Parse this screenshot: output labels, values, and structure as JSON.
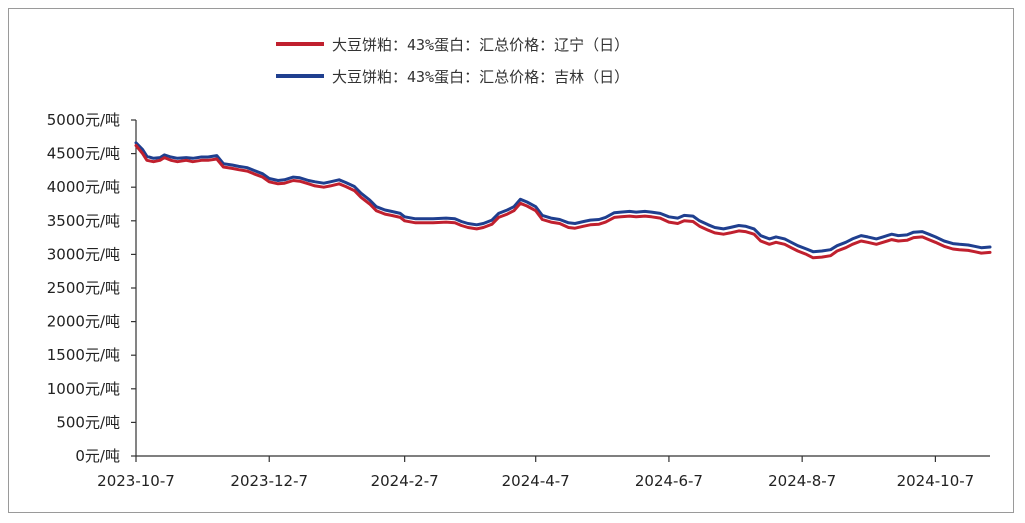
{
  "chart_data": {
    "type": "line",
    "title": "",
    "xlabel": "",
    "ylabel": "",
    "ylim": [
      0,
      5000
    ],
    "yticks": [
      0,
      500,
      1000,
      1500,
      2000,
      2500,
      3000,
      3500,
      4000,
      4500,
      5000
    ],
    "ytick_labels": [
      "0元/吨",
      "500元/吨",
      "1000元/吨",
      "1500元/吨",
      "2000元/吨",
      "2500元/吨",
      "3000元/吨",
      "3500元/吨",
      "4000元/吨",
      "4500元/吨",
      "5000元/吨"
    ],
    "xlim": [
      "2023-10-07",
      "2024-11-01"
    ],
    "xticks": [
      "2023-10-07",
      "2023-12-07",
      "2024-02-07",
      "2024-04-07",
      "2024-06-07",
      "2024-08-07",
      "2024-10-07"
    ],
    "xtick_labels": [
      "2023-10-7",
      "2023-12-7",
      "2024-2-7",
      "2024-4-7",
      "2024-6-7",
      "2024-8-7",
      "2024-10-7"
    ],
    "legend_position": "top",
    "grid": false,
    "series": [
      {
        "name": "大豆饼粕：43%蛋白：汇总价格：辽宁（日）",
        "color": "#c0202e",
        "points": [
          [
            "2023-10-07",
            4620
          ],
          [
            "2023-10-10",
            4500
          ],
          [
            "2023-10-12",
            4400
          ],
          [
            "2023-10-15",
            4380
          ],
          [
            "2023-10-18",
            4400
          ],
          [
            "2023-10-20",
            4440
          ],
          [
            "2023-10-23",
            4400
          ],
          [
            "2023-10-26",
            4380
          ],
          [
            "2023-10-30",
            4400
          ],
          [
            "2023-11-02",
            4380
          ],
          [
            "2023-11-06",
            4400
          ],
          [
            "2023-11-09",
            4400
          ],
          [
            "2023-11-13",
            4420
          ],
          [
            "2023-11-16",
            4300
          ],
          [
            "2023-11-20",
            4280
          ],
          [
            "2023-11-23",
            4260
          ],
          [
            "2023-11-27",
            4240
          ],
          [
            "2023-11-30",
            4200
          ],
          [
            "2023-12-04",
            4150
          ],
          [
            "2023-12-07",
            4080
          ],
          [
            "2023-12-11",
            4050
          ],
          [
            "2023-12-14",
            4060
          ],
          [
            "2023-12-18",
            4100
          ],
          [
            "2023-12-21",
            4090
          ],
          [
            "2023-12-25",
            4050
          ],
          [
            "2023-12-28",
            4020
          ],
          [
            "2024-01-01",
            4000
          ],
          [
            "2024-01-04",
            4020
          ],
          [
            "2024-01-08",
            4050
          ],
          [
            "2024-01-11",
            4010
          ],
          [
            "2024-01-15",
            3950
          ],
          [
            "2024-01-18",
            3850
          ],
          [
            "2024-01-22",
            3750
          ],
          [
            "2024-01-25",
            3650
          ],
          [
            "2024-01-29",
            3600
          ],
          [
            "2024-02-01",
            3580
          ],
          [
            "2024-02-05",
            3550
          ],
          [
            "2024-02-07",
            3500
          ],
          [
            "2024-02-12",
            3470
          ],
          [
            "2024-02-20",
            3470
          ],
          [
            "2024-02-26",
            3480
          ],
          [
            "2024-03-01",
            3470
          ],
          [
            "2024-03-04",
            3430
          ],
          [
            "2024-03-07",
            3400
          ],
          [
            "2024-03-11",
            3380
          ],
          [
            "2024-03-14",
            3400
          ],
          [
            "2024-03-18",
            3450
          ],
          [
            "2024-03-21",
            3550
          ],
          [
            "2024-03-25",
            3600
          ],
          [
            "2024-03-28",
            3650
          ],
          [
            "2024-03-31",
            3760
          ],
          [
            "2024-04-03",
            3720
          ],
          [
            "2024-04-07",
            3650
          ],
          [
            "2024-04-10",
            3520
          ],
          [
            "2024-04-14",
            3480
          ],
          [
            "2024-04-18",
            3460
          ],
          [
            "2024-04-22",
            3400
          ],
          [
            "2024-04-25",
            3390
          ],
          [
            "2024-04-29",
            3420
          ],
          [
            "2024-05-02",
            3440
          ],
          [
            "2024-05-06",
            3450
          ],
          [
            "2024-05-09",
            3480
          ],
          [
            "2024-05-13",
            3550
          ],
          [
            "2024-05-16",
            3560
          ],
          [
            "2024-05-20",
            3570
          ],
          [
            "2024-05-23",
            3560
          ],
          [
            "2024-05-27",
            3570
          ],
          [
            "2024-05-30",
            3560
          ],
          [
            "2024-06-03",
            3540
          ],
          [
            "2024-06-07",
            3480
          ],
          [
            "2024-06-11",
            3460
          ],
          [
            "2024-06-14",
            3500
          ],
          [
            "2024-06-18",
            3490
          ],
          [
            "2024-06-21",
            3420
          ],
          [
            "2024-06-25",
            3360
          ],
          [
            "2024-06-28",
            3320
          ],
          [
            "2024-07-02",
            3300
          ],
          [
            "2024-07-05",
            3320
          ],
          [
            "2024-07-09",
            3350
          ],
          [
            "2024-07-12",
            3340
          ],
          [
            "2024-07-16",
            3300
          ],
          [
            "2024-07-19",
            3200
          ],
          [
            "2024-07-23",
            3150
          ],
          [
            "2024-07-26",
            3180
          ],
          [
            "2024-07-30",
            3150
          ],
          [
            "2024-08-02",
            3100
          ],
          [
            "2024-08-05",
            3050
          ],
          [
            "2024-08-09",
            3000
          ],
          [
            "2024-08-12",
            2950
          ],
          [
            "2024-08-16",
            2960
          ],
          [
            "2024-08-20",
            2980
          ],
          [
            "2024-08-23",
            3050
          ],
          [
            "2024-08-27",
            3100
          ],
          [
            "2024-08-30",
            3150
          ],
          [
            "2024-09-03",
            3200
          ],
          [
            "2024-09-06",
            3180
          ],
          [
            "2024-09-10",
            3150
          ],
          [
            "2024-09-13",
            3180
          ],
          [
            "2024-09-17",
            3220
          ],
          [
            "2024-09-20",
            3200
          ],
          [
            "2024-09-24",
            3210
          ],
          [
            "2024-09-27",
            3250
          ],
          [
            "2024-10-01",
            3260
          ],
          [
            "2024-10-04",
            3220
          ],
          [
            "2024-10-07",
            3180
          ],
          [
            "2024-10-11",
            3120
          ],
          [
            "2024-10-15",
            3080
          ],
          [
            "2024-10-18",
            3070
          ],
          [
            "2024-10-22",
            3060
          ],
          [
            "2024-10-25",
            3040
          ],
          [
            "2024-10-28",
            3020
          ],
          [
            "2024-11-01",
            3030
          ]
        ]
      },
      {
        "name": "大豆饼粕：43%蛋白：汇总价格：吉林（日）",
        "color": "#1f3f8f",
        "points": [
          [
            "2023-10-07",
            4660
          ],
          [
            "2023-10-10",
            4560
          ],
          [
            "2023-10-12",
            4460
          ],
          [
            "2023-10-15",
            4430
          ],
          [
            "2023-10-18",
            4440
          ],
          [
            "2023-10-20",
            4480
          ],
          [
            "2023-10-23",
            4450
          ],
          [
            "2023-10-26",
            4430
          ],
          [
            "2023-10-30",
            4440
          ],
          [
            "2023-11-02",
            4430
          ],
          [
            "2023-11-06",
            4450
          ],
          [
            "2023-11-09",
            4450
          ],
          [
            "2023-11-13",
            4470
          ],
          [
            "2023-11-16",
            4350
          ],
          [
            "2023-11-20",
            4330
          ],
          [
            "2023-11-23",
            4310
          ],
          [
            "2023-11-27",
            4290
          ],
          [
            "2023-11-30",
            4250
          ],
          [
            "2023-12-04",
            4200
          ],
          [
            "2023-12-07",
            4130
          ],
          [
            "2023-12-11",
            4100
          ],
          [
            "2023-12-14",
            4110
          ],
          [
            "2023-12-18",
            4150
          ],
          [
            "2023-12-21",
            4140
          ],
          [
            "2023-12-25",
            4100
          ],
          [
            "2023-12-28",
            4080
          ],
          [
            "2024-01-01",
            4060
          ],
          [
            "2024-01-04",
            4080
          ],
          [
            "2024-01-08",
            4110
          ],
          [
            "2024-01-11",
            4070
          ],
          [
            "2024-01-15",
            4010
          ],
          [
            "2024-01-18",
            3910
          ],
          [
            "2024-01-22",
            3810
          ],
          [
            "2024-01-25",
            3710
          ],
          [
            "2024-01-29",
            3660
          ],
          [
            "2024-02-01",
            3640
          ],
          [
            "2024-02-05",
            3610
          ],
          [
            "2024-02-07",
            3560
          ],
          [
            "2024-02-12",
            3530
          ],
          [
            "2024-02-20",
            3530
          ],
          [
            "2024-02-26",
            3540
          ],
          [
            "2024-03-01",
            3530
          ],
          [
            "2024-03-04",
            3490
          ],
          [
            "2024-03-07",
            3460
          ],
          [
            "2024-03-11",
            3440
          ],
          [
            "2024-03-14",
            3460
          ],
          [
            "2024-03-18",
            3510
          ],
          [
            "2024-03-21",
            3610
          ],
          [
            "2024-03-25",
            3660
          ],
          [
            "2024-03-28",
            3710
          ],
          [
            "2024-03-31",
            3820
          ],
          [
            "2024-04-03",
            3780
          ],
          [
            "2024-04-07",
            3710
          ],
          [
            "2024-04-10",
            3580
          ],
          [
            "2024-04-14",
            3540
          ],
          [
            "2024-04-18",
            3520
          ],
          [
            "2024-04-22",
            3470
          ],
          [
            "2024-04-25",
            3460
          ],
          [
            "2024-04-29",
            3490
          ],
          [
            "2024-05-02",
            3510
          ],
          [
            "2024-05-06",
            3520
          ],
          [
            "2024-05-09",
            3550
          ],
          [
            "2024-05-13",
            3620
          ],
          [
            "2024-05-16",
            3630
          ],
          [
            "2024-05-20",
            3640
          ],
          [
            "2024-05-23",
            3630
          ],
          [
            "2024-05-27",
            3640
          ],
          [
            "2024-05-30",
            3630
          ],
          [
            "2024-06-03",
            3610
          ],
          [
            "2024-06-07",
            3560
          ],
          [
            "2024-06-11",
            3540
          ],
          [
            "2024-06-14",
            3580
          ],
          [
            "2024-06-18",
            3570
          ],
          [
            "2024-06-21",
            3500
          ],
          [
            "2024-06-25",
            3440
          ],
          [
            "2024-06-28",
            3400
          ],
          [
            "2024-07-02",
            3380
          ],
          [
            "2024-07-05",
            3400
          ],
          [
            "2024-07-09",
            3430
          ],
          [
            "2024-07-12",
            3420
          ],
          [
            "2024-07-16",
            3380
          ],
          [
            "2024-07-19",
            3280
          ],
          [
            "2024-07-23",
            3230
          ],
          [
            "2024-07-26",
            3260
          ],
          [
            "2024-07-30",
            3230
          ],
          [
            "2024-08-02",
            3180
          ],
          [
            "2024-08-05",
            3130
          ],
          [
            "2024-08-09",
            3080
          ],
          [
            "2024-08-12",
            3040
          ],
          [
            "2024-08-16",
            3050
          ],
          [
            "2024-08-20",
            3070
          ],
          [
            "2024-08-23",
            3130
          ],
          [
            "2024-08-27",
            3180
          ],
          [
            "2024-08-30",
            3230
          ],
          [
            "2024-09-03",
            3280
          ],
          [
            "2024-09-06",
            3260
          ],
          [
            "2024-09-10",
            3230
          ],
          [
            "2024-09-13",
            3260
          ],
          [
            "2024-09-17",
            3300
          ],
          [
            "2024-09-20",
            3280
          ],
          [
            "2024-09-24",
            3290
          ],
          [
            "2024-09-27",
            3330
          ],
          [
            "2024-10-01",
            3340
          ],
          [
            "2024-10-04",
            3300
          ],
          [
            "2024-10-07",
            3260
          ],
          [
            "2024-10-11",
            3200
          ],
          [
            "2024-10-15",
            3160
          ],
          [
            "2024-10-18",
            3150
          ],
          [
            "2024-10-22",
            3140
          ],
          [
            "2024-10-25",
            3120
          ],
          [
            "2024-10-28",
            3100
          ],
          [
            "2024-11-01",
            3110
          ]
        ]
      }
    ]
  }
}
